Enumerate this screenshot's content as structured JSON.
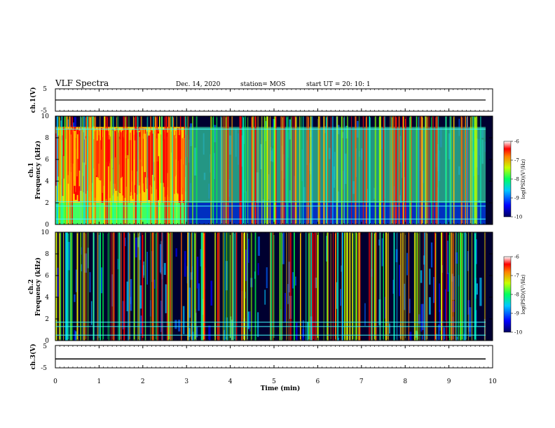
{
  "header": {
    "title": "VLF Spectra",
    "date": "Dec. 14, 2020",
    "station": "station= MOS",
    "start": "start  UT =   20: 10: 1"
  },
  "chart_data": [
    {
      "type": "line",
      "panel": "ch1-voltage",
      "ylabel": "ch.1(V)",
      "ylim": [
        -5,
        5
      ],
      "yticks": [
        "5",
        "-5"
      ],
      "x": [
        0,
        10
      ],
      "values": [
        0,
        0
      ]
    },
    {
      "type": "heatmap",
      "panel": "ch1-spectrogram",
      "ylabel": "ch.1\nFrequency  (kHz)",
      "ylim": [
        0,
        10
      ],
      "yticks": [
        "0",
        "2",
        "4",
        "6",
        "8",
        "10"
      ],
      "xlim": [
        0,
        10
      ],
      "colorbar": {
        "label": "log(PSD)(V²/Hz)",
        "range": [
          -10,
          -6
        ],
        "ticks": [
          "-6",
          "-7",
          "-8",
          "-9",
          "-10"
        ]
      },
      "features": {
        "strong_emission": {
          "t_start": 0,
          "t_end": 3,
          "f_low": 2,
          "f_high": 9,
          "level": -6.5
        },
        "low_band": {
          "t_start": 0,
          "t_end": 3,
          "f_low": 0,
          "f_high": 2,
          "level": -8
        },
        "lines_khz": [
          0.5,
          1.7,
          2.1,
          8.8
        ]
      }
    },
    {
      "type": "heatmap",
      "panel": "ch2-spectrogram",
      "ylabel": "ch.2\nFrequency  (kHz)",
      "ylim": [
        0,
        10
      ],
      "yticks": [
        "0",
        "2",
        "4",
        "6",
        "8",
        "10"
      ],
      "xlim": [
        0,
        10
      ],
      "colorbar": {
        "label": "log(PSD)(V²/Hz)",
        "range": [
          -10,
          -6
        ],
        "ticks": [
          "-6",
          "-7",
          "-8",
          "-9",
          "-10"
        ]
      },
      "features": {
        "lines_khz": [
          0.5,
          1.3,
          1.7
        ]
      }
    },
    {
      "type": "line",
      "panel": "ch3-voltage",
      "ylabel": "ch.3(V)",
      "ylim": [
        -5,
        5
      ],
      "yticks": [
        "5",
        "-5"
      ],
      "x": [
        0,
        10
      ],
      "values": [
        -1,
        -1
      ]
    }
  ],
  "xaxis": {
    "label": "Time  (min)",
    "ticks": [
      "0",
      "1",
      "2",
      "3",
      "4",
      "5",
      "6",
      "7",
      "8",
      "9",
      "10"
    ],
    "xlim": [
      0,
      10
    ]
  }
}
